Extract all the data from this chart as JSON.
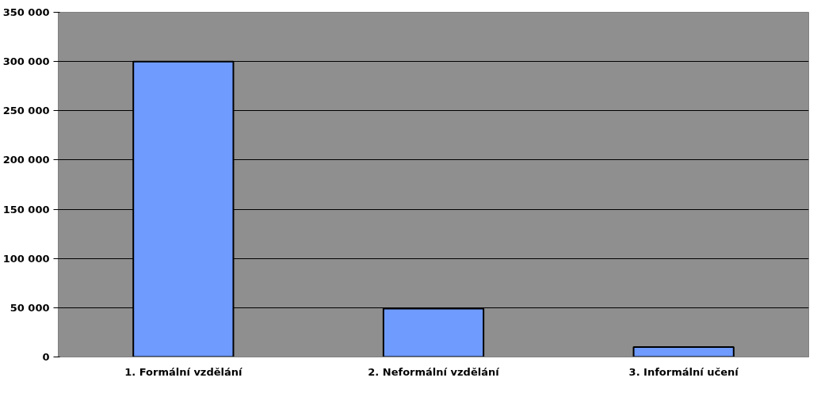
{
  "chart_data": {
    "type": "bar",
    "categories": [
      "1. Formální vzdělání",
      "2. Neformální vzdělání",
      "3. Informální učení"
    ],
    "values": [
      300000,
      49000,
      10000
    ],
    "color": "#6f9bff",
    "ylim": [
      0,
      350000
    ],
    "yticks": [
      {
        "value": 0,
        "label": "0"
      },
      {
        "value": 50000,
        "label": "50 000"
      },
      {
        "value": 100000,
        "label": "100 000"
      },
      {
        "value": 150000,
        "label": "150 000"
      },
      {
        "value": 200000,
        "label": "200 000"
      },
      {
        "value": 250000,
        "label": "250 000"
      },
      {
        "value": 300000,
        "label": "300 000"
      },
      {
        "value": 350000,
        "label": "350 000"
      }
    ],
    "grid": "y"
  }
}
